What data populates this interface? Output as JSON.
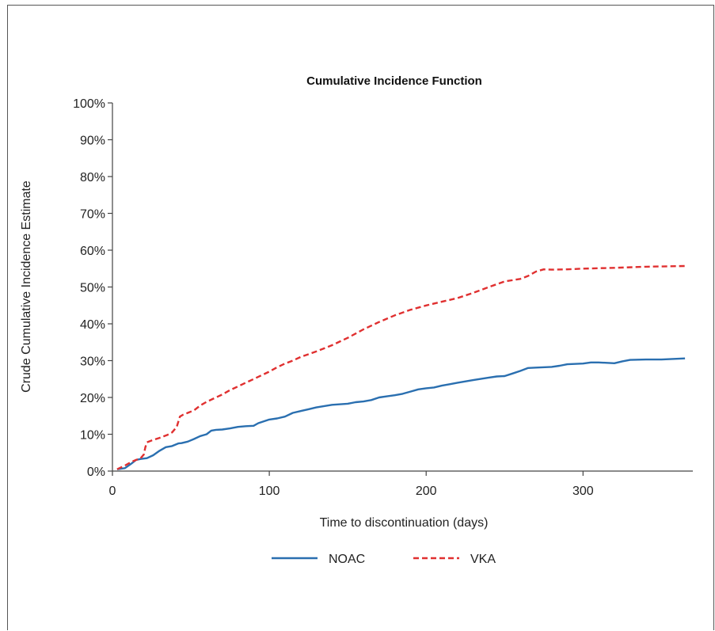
{
  "chart_data": {
    "type": "line",
    "title": "Cumulative Incidence Function",
    "xlabel": "Time to discontinuation (days)",
    "ylabel": "Crude Cumulative Incidence Estimate",
    "xlim": [
      0,
      370
    ],
    "ylim": [
      0,
      100
    ],
    "x_ticks": [
      0,
      100,
      200,
      300
    ],
    "x_tick_labels": [
      "0",
      "100",
      "200",
      "300"
    ],
    "y_ticks": [
      0,
      10,
      20,
      30,
      40,
      50,
      60,
      70,
      80,
      90,
      100
    ],
    "y_tick_labels": [
      "0%",
      "10%",
      "20%",
      "30%",
      "40%",
      "50%",
      "60%",
      "70%",
      "80%",
      "90%",
      "100%"
    ],
    "grid": false,
    "legend_position": "bottom",
    "series": [
      {
        "name": "NOAC",
        "color": "#2a6fb0",
        "style": "solid",
        "x": [
          3,
          8,
          12,
          15,
          18,
          22,
          26,
          30,
          34,
          38,
          42,
          44,
          48,
          52,
          56,
          60,
          63,
          66,
          70,
          75,
          80,
          85,
          90,
          93,
          100,
          105,
          110,
          115,
          120,
          125,
          130,
          140,
          150,
          155,
          160,
          165,
          170,
          175,
          180,
          185,
          190,
          195,
          200,
          205,
          210,
          215,
          220,
          230,
          240,
          245,
          250,
          255,
          260,
          265,
          270,
          280,
          285,
          290,
          300,
          305,
          310,
          320,
          325,
          330,
          340,
          350,
          365
        ],
        "y": [
          0.5,
          0.8,
          2,
          3,
          3.3,
          3.5,
          4.3,
          5.5,
          6.5,
          6.8,
          7.5,
          7.6,
          8,
          8.7,
          9.5,
          10,
          11,
          11.2,
          11.3,
          11.6,
          12,
          12.2,
          12.3,
          13,
          14,
          14.3,
          14.8,
          15.8,
          16.3,
          16.8,
          17.3,
          18,
          18.3,
          18.7,
          18.9,
          19.3,
          20,
          20.3,
          20.6,
          21,
          21.6,
          22.2,
          22.5,
          22.7,
          23.2,
          23.6,
          24,
          24.7,
          25.4,
          25.7,
          25.8,
          26.5,
          27.2,
          28,
          28.1,
          28.3,
          28.6,
          29,
          29.2,
          29.5,
          29.5,
          29.3,
          29.8,
          30.2,
          30.3,
          30.3,
          30.6
        ]
      },
      {
        "name": "VKA",
        "color": "#e03030",
        "style": "dashed",
        "x": [
          3,
          8,
          12,
          15,
          18,
          20,
          21,
          22,
          25,
          30,
          35,
          38,
          41,
          43,
          45,
          48,
          52,
          56,
          60,
          65,
          70,
          75,
          80,
          85,
          90,
          95,
          100,
          105,
          110,
          115,
          120,
          130,
          140,
          150,
          160,
          170,
          180,
          190,
          200,
          210,
          220,
          230,
          240,
          250,
          260,
          265,
          270,
          275,
          280,
          290,
          300,
          320,
          340,
          365
        ],
        "y": [
          0.5,
          1.5,
          2.5,
          3,
          3.5,
          4.5,
          6.5,
          7.8,
          8.3,
          9,
          9.8,
          10.5,
          12,
          14.8,
          15.3,
          15.8,
          16.5,
          17.8,
          18.8,
          19.8,
          20.8,
          22,
          23,
          24,
          25,
          26,
          27,
          28.2,
          29.2,
          30,
          31,
          32.5,
          34.2,
          36.2,
          38.5,
          40.5,
          42.3,
          43.8,
          45,
          46,
          47,
          48.4,
          50,
          51.5,
          52.2,
          53,
          54.2,
          54.8,
          54.7,
          54.8,
          55,
          55.2,
          55.5,
          55.7
        ]
      }
    ]
  }
}
